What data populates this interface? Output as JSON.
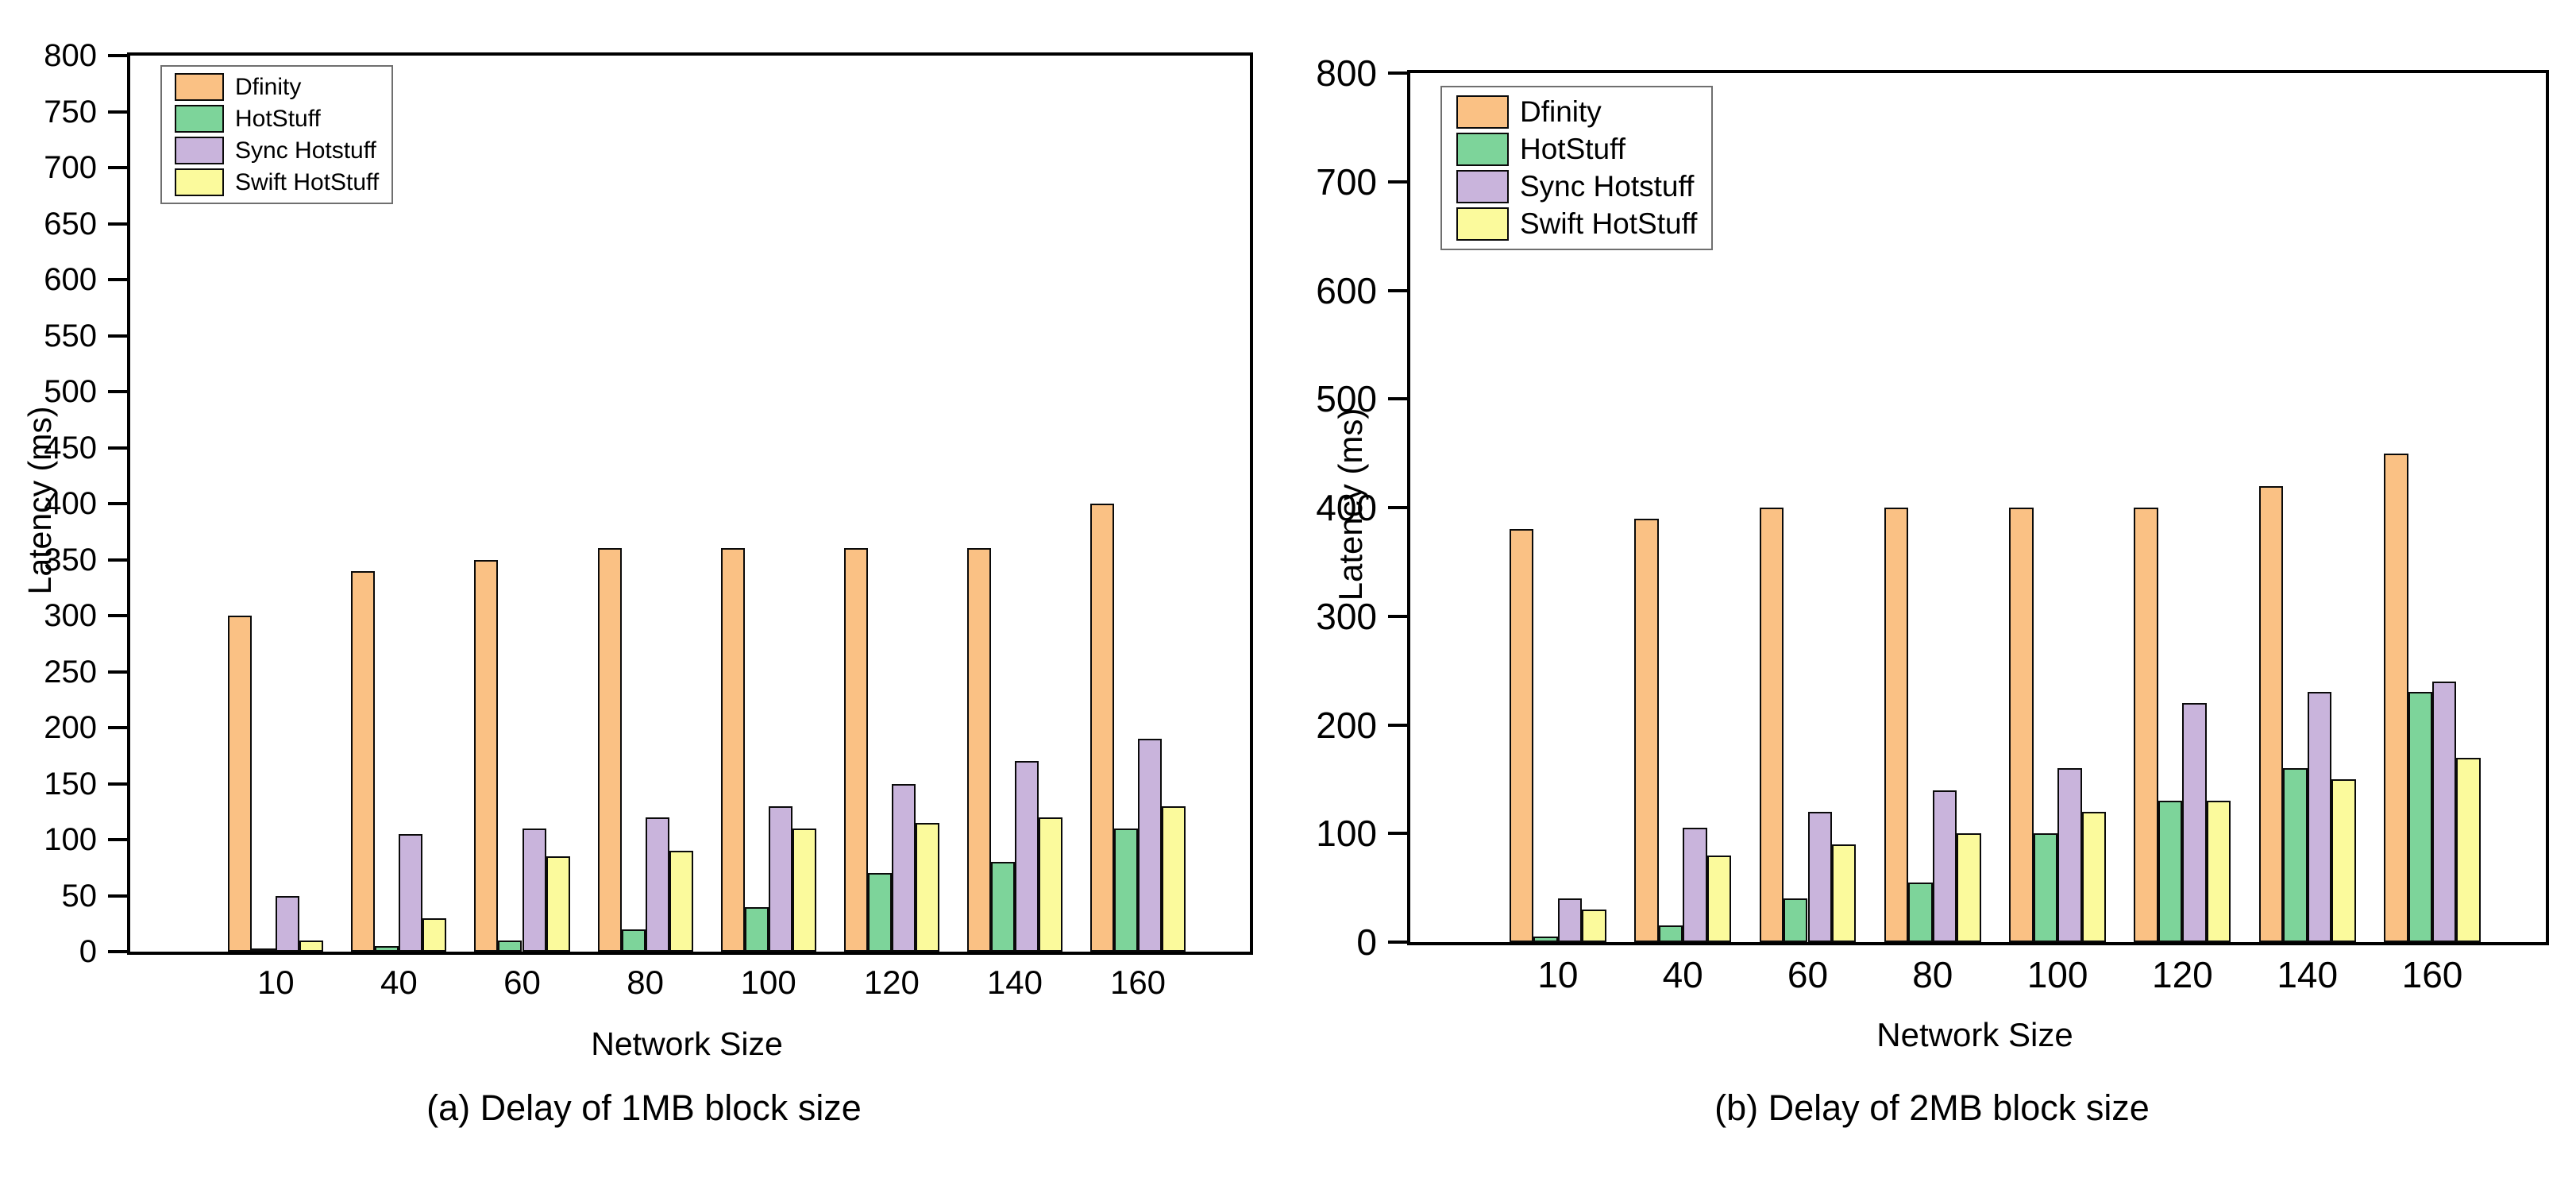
{
  "page": {
    "background": "#ffffff",
    "text_color": "#000000"
  },
  "chart_data": [
    {
      "type": "bar",
      "caption": "(a) Delay of 1MB block size",
      "xlabel": "Network Size",
      "ylabel": "Latency (ms)",
      "ylim": [
        0,
        800
      ],
      "ytick_step": 50,
      "yticks": [
        0,
        50,
        100,
        150,
        200,
        250,
        300,
        350,
        400,
        450,
        500,
        550,
        600,
        650,
        700,
        750,
        800
      ],
      "grid": "off",
      "legend_position": "top-left-inside",
      "categories": [
        "10",
        "40",
        "60",
        "80",
        "100",
        "120",
        "140",
        "160"
      ],
      "series": [
        {
          "name": "Dfinity",
          "color": "#FAC184",
          "values": [
            300,
            340,
            350,
            360,
            360,
            360,
            360,
            400
          ]
        },
        {
          "name": "HotStuff",
          "color": "#7DD49A",
          "values": [
            3,
            5,
            10,
            20,
            40,
            70,
            80,
            110
          ]
        },
        {
          "name": "Sync Hotstuff",
          "color": "#C9B4DC",
          "values": [
            50,
            105,
            110,
            120,
            130,
            150,
            170,
            190
          ]
        },
        {
          "name": "Swift HotStuff",
          "color": "#FBFA9C",
          "values": [
            10,
            30,
            85,
            90,
            110,
            115,
            120,
            130
          ]
        }
      ]
    },
    {
      "type": "bar",
      "caption": "(b) Delay of 2MB block size",
      "xlabel": "Network Size",
      "ylabel": "Latency (ms)",
      "ylim": [
        0,
        800
      ],
      "ytick_step": 100,
      "yticks": [
        0,
        100,
        200,
        300,
        400,
        500,
        600,
        700,
        800
      ],
      "grid": "off",
      "legend_position": "top-left-inside",
      "categories": [
        "10",
        "40",
        "60",
        "80",
        "100",
        "120",
        "140",
        "160"
      ],
      "series": [
        {
          "name": "Dfinity",
          "color": "#FAC184",
          "values": [
            380,
            390,
            400,
            400,
            400,
            400,
            420,
            450
          ]
        },
        {
          "name": "HotStuff",
          "color": "#7DD49A",
          "values": [
            5,
            15,
            40,
            55,
            100,
            130,
            160,
            230
          ]
        },
        {
          "name": "Sync Hotstuff",
          "color": "#C9B4DC",
          "values": [
            40,
            105,
            120,
            140,
            160,
            220,
            230,
            240
          ]
        },
        {
          "name": "Swift HotStuff",
          "color": "#FBFA9C",
          "values": [
            30,
            80,
            90,
            100,
            120,
            130,
            150,
            170
          ]
        }
      ]
    }
  ]
}
